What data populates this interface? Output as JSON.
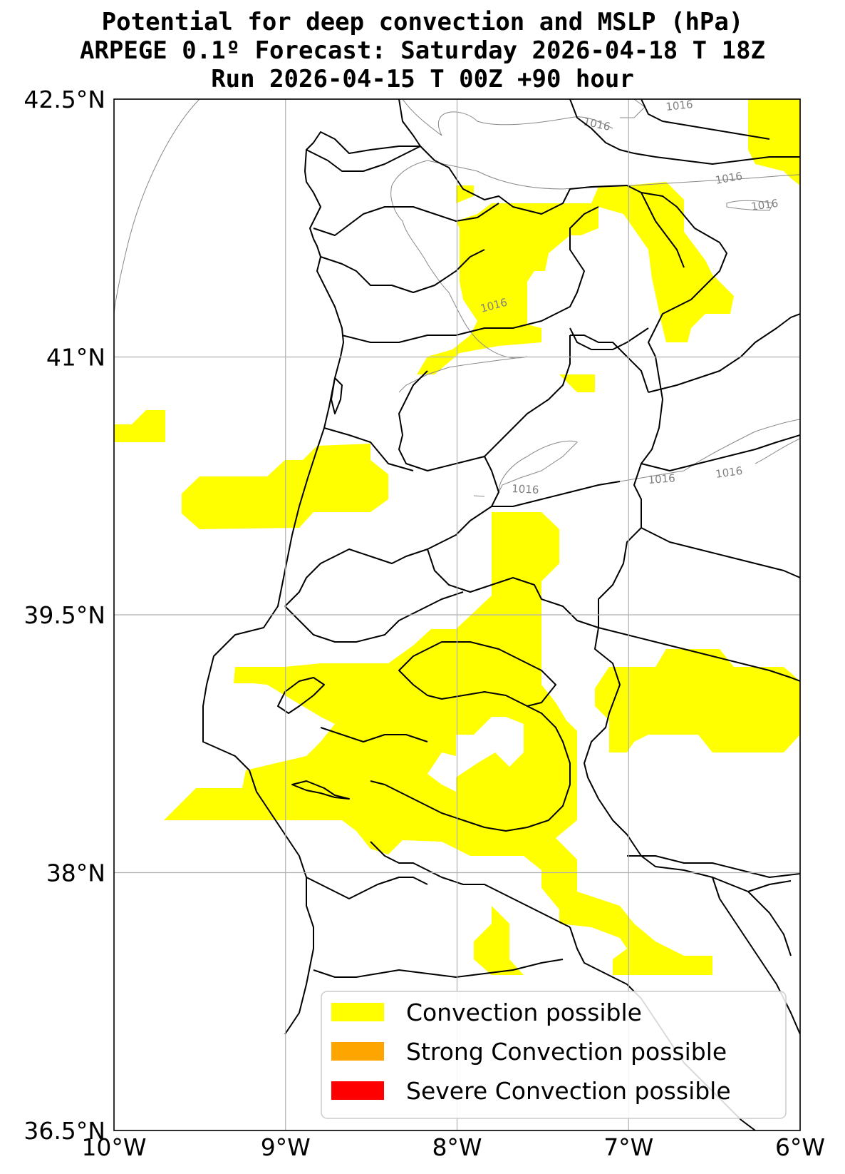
{
  "title": {
    "line1": "Potential for deep convection and MSLP (hPa)",
    "line2": "ARPEGE 0.1º Forecast: Saturday 2026-04-18 T 18Z",
    "line3": "Run 2026-04-15 T 00Z +90 hour"
  },
  "axes": {
    "lon_ticks": [
      -10,
      -9,
      -8,
      -7,
      -6
    ],
    "lon_labels": [
      "10°W",
      "9°W",
      "8°W",
      "7°W",
      "6°W"
    ],
    "lat_ticks": [
      36.5,
      38,
      39.5,
      41,
      42.5
    ],
    "lat_labels": [
      "36.5°N",
      "38°N",
      "39.5°N",
      "41°N",
      "42.5°N"
    ],
    "xlim": [
      -10,
      -6
    ],
    "ylim": [
      36.5,
      42.5
    ],
    "grid": true
  },
  "isobar_labels": [
    "1016",
    "1016",
    "1016",
    "1016",
    "1016",
    "1016",
    "1016",
    "1016"
  ],
  "legend": {
    "placement": "lower-right",
    "items": [
      {
        "label": "Convection possible",
        "color": "#ffff00"
      },
      {
        "label": "Strong Convection possible",
        "color": "#ffa500"
      },
      {
        "label": "Severe Convection possible",
        "color": "#ff0000"
      }
    ]
  },
  "colors": {
    "convection": "#ffff00",
    "border": "#000000",
    "isobar": "#808080",
    "grid": "#b0b0b0"
  }
}
